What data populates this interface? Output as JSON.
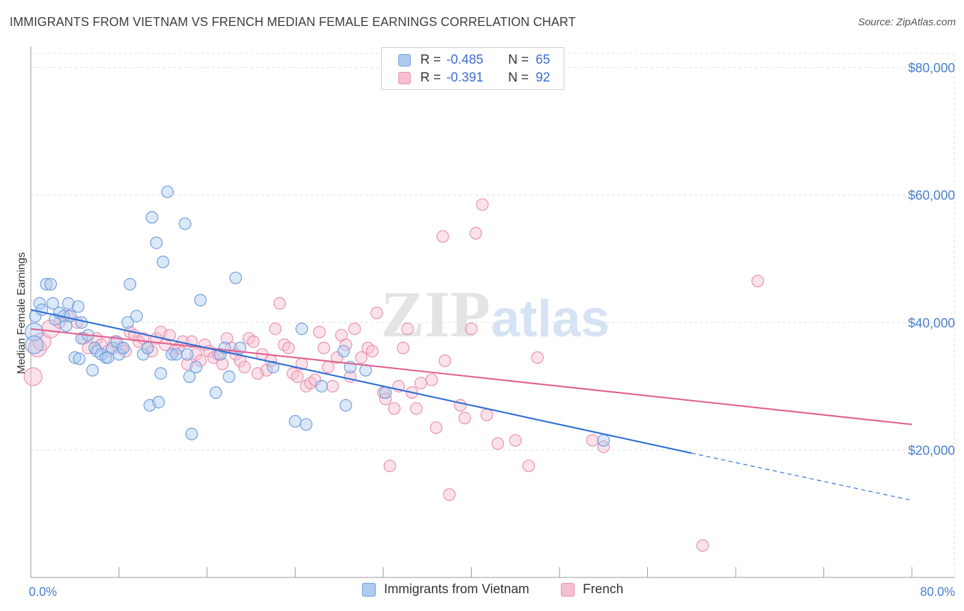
{
  "title": "IMMIGRANTS FROM VIETNAM VS FRENCH MEDIAN FEMALE EARNINGS CORRELATION CHART",
  "source": "Source: ZipAtlas.com",
  "watermark": {
    "zip": "ZIP",
    "atlas": "atlas"
  },
  "legend": {
    "rows": [
      {
        "r_label": "R =",
        "r_value": "-0.485",
        "n_label": "N =",
        "n_value": "65"
      },
      {
        "r_label": "R =",
        "r_value": "-0.391",
        "n_label": "N =",
        "n_value": "92"
      }
    ]
  },
  "colors": {
    "blue_fill": "#aecbf0",
    "blue_stroke": "#6f9de0",
    "blue_line": "#2e6fd3",
    "pink_fill": "#f7bfd0",
    "pink_stroke": "#ea8fae",
    "pink_line": "#e0628f",
    "tick_label": "#4a7fd0",
    "grid": "#dddddd"
  },
  "chart_data": {
    "type": "scatter",
    "title": "IMMIGRANTS FROM VIETNAM VS FRENCH MEDIAN FEMALE EARNINGS CORRELATION CHART",
    "xlabel": "",
    "ylabel": "Median Female Earnings",
    "xlim": [
      0,
      80
    ],
    "ylim": [
      0,
      82000
    ],
    "x_tick_labels": [
      "0.0%",
      "80.0%"
    ],
    "y_ticks": [
      20000,
      40000,
      60000,
      80000
    ],
    "y_tick_labels": [
      "$20,000",
      "$40,000",
      "$60,000",
      "$80,000"
    ],
    "grid": true,
    "legend_position": "top-center",
    "series": [
      {
        "name": "Immigrants from Vietnam",
        "r": -0.485,
        "n": 65,
        "trend": {
          "x0": 0,
          "y0": 42000,
          "x1": 60,
          "y1": 19500,
          "dash_to_x": 80,
          "dash_to_y": 12100
        },
        "points": [
          [
            0.3,
            38500,
            3
          ],
          [
            0.3,
            36500,
            3
          ],
          [
            0.4,
            41000,
            2
          ],
          [
            0.8,
            43000,
            2
          ],
          [
            1.0,
            42000,
            2
          ],
          [
            1.4,
            46000,
            2
          ],
          [
            1.8,
            46000,
            2
          ],
          [
            2.0,
            43000,
            2
          ],
          [
            2.2,
            40500,
            2
          ],
          [
            2.6,
            41500,
            2
          ],
          [
            3.0,
            41000,
            2
          ],
          [
            3.2,
            39500,
            2
          ],
          [
            3.6,
            41000,
            2
          ],
          [
            3.4,
            43000,
            2
          ],
          [
            4.3,
            42500,
            2
          ],
          [
            4.6,
            40000,
            2
          ],
          [
            4.0,
            34500,
            2
          ],
          [
            4.4,
            34300,
            2
          ],
          [
            4.6,
            37500,
            2
          ],
          [
            5.2,
            38000,
            2
          ],
          [
            5.6,
            32500,
            2
          ],
          [
            5.8,
            36000,
            2
          ],
          [
            6.0,
            35500,
            2
          ],
          [
            6.4,
            35000,
            2
          ],
          [
            6.8,
            34500,
            2
          ],
          [
            7.0,
            34500,
            2
          ],
          [
            7.4,
            36000,
            2
          ],
          [
            7.8,
            37000,
            2
          ],
          [
            8.0,
            35000,
            2
          ],
          [
            8.4,
            36000,
            2
          ],
          [
            8.8,
            40000,
            2
          ],
          [
            9.0,
            46000,
            2
          ],
          [
            9.6,
            41000,
            2
          ],
          [
            10.2,
            35000,
            2
          ],
          [
            10.6,
            36000,
            2
          ],
          [
            11.0,
            56500,
            2
          ],
          [
            11.4,
            52500,
            2
          ],
          [
            10.8,
            27000,
            2
          ],
          [
            11.6,
            27500,
            2
          ],
          [
            11.8,
            32000,
            2
          ],
          [
            12.0,
            49500,
            2
          ],
          [
            12.4,
            60500,
            2
          ],
          [
            12.8,
            35000,
            2
          ],
          [
            13.2,
            35000,
            2
          ],
          [
            14.0,
            55500,
            2
          ],
          [
            14.2,
            35000,
            2
          ],
          [
            14.4,
            31500,
            2
          ],
          [
            14.6,
            22500,
            2
          ],
          [
            15.4,
            43500,
            2
          ],
          [
            15.0,
            33000,
            2
          ],
          [
            16.8,
            29000,
            2
          ],
          [
            17.2,
            35000,
            2
          ],
          [
            17.6,
            36000,
            2
          ],
          [
            18.0,
            31500,
            2
          ],
          [
            18.6,
            47000,
            2
          ],
          [
            19.0,
            36000,
            2
          ],
          [
            22.0,
            33000,
            2
          ],
          [
            24.0,
            24500,
            2
          ],
          [
            24.6,
            39000,
            2
          ],
          [
            25.0,
            24000,
            2
          ],
          [
            26.4,
            30000,
            2
          ],
          [
            28.6,
            27000,
            2
          ],
          [
            28.4,
            35500,
            2
          ],
          [
            29.0,
            33000,
            2
          ],
          [
            30.4,
            32500,
            2
          ],
          [
            32.2,
            29000,
            2
          ],
          [
            52.0,
            21500,
            2
          ]
        ]
      },
      {
        "name": "French",
        "r": -0.391,
        "n": 92,
        "trend": {
          "x0": 0,
          "y0": 39000,
          "x1": 80,
          "y1": 24000
        },
        "points": [
          [
            0.2,
            31500,
            3
          ],
          [
            0.6,
            36000,
            3
          ],
          [
            1.0,
            37000,
            3
          ],
          [
            1.8,
            39000,
            3
          ],
          [
            2.6,
            40000,
            2
          ],
          [
            3.4,
            41000,
            2
          ],
          [
            4.2,
            40000,
            2
          ],
          [
            4.8,
            37500,
            2
          ],
          [
            5.2,
            36000,
            2
          ],
          [
            6.0,
            37500,
            2
          ],
          [
            6.4,
            36500,
            2
          ],
          [
            7.0,
            35500,
            2
          ],
          [
            7.6,
            37000,
            2
          ],
          [
            8.2,
            36000,
            2
          ],
          [
            8.6,
            35500,
            2
          ],
          [
            9.0,
            38500,
            2
          ],
          [
            9.4,
            38000,
            2
          ],
          [
            9.8,
            37000,
            2
          ],
          [
            10.2,
            37500,
            2
          ],
          [
            10.6,
            36000,
            2
          ],
          [
            11.0,
            35500,
            2
          ],
          [
            11.4,
            37500,
            2
          ],
          [
            11.8,
            38500,
            2
          ],
          [
            12.2,
            36500,
            2
          ],
          [
            12.6,
            38000,
            2
          ],
          [
            13.0,
            35500,
            2
          ],
          [
            13.4,
            36000,
            2
          ],
          [
            13.8,
            37000,
            2
          ],
          [
            14.2,
            33500,
            2
          ],
          [
            14.6,
            37000,
            2
          ],
          [
            15.0,
            35000,
            2
          ],
          [
            15.4,
            34000,
            2
          ],
          [
            15.8,
            36500,
            2
          ],
          [
            16.2,
            35500,
            2
          ],
          [
            16.6,
            34500,
            2
          ],
          [
            17.0,
            35000,
            2
          ],
          [
            17.4,
            33500,
            2
          ],
          [
            17.8,
            37500,
            2
          ],
          [
            18.2,
            36000,
            2
          ],
          [
            18.6,
            35000,
            2
          ],
          [
            19.0,
            34000,
            2
          ],
          [
            19.4,
            33000,
            2
          ],
          [
            19.8,
            37500,
            2
          ],
          [
            20.2,
            37000,
            2
          ],
          [
            20.6,
            32000,
            2
          ],
          [
            21.0,
            35000,
            2
          ],
          [
            21.4,
            32500,
            2
          ],
          [
            21.8,
            34000,
            2
          ],
          [
            22.2,
            39000,
            2
          ],
          [
            22.6,
            43000,
            2
          ],
          [
            23.0,
            36500,
            2
          ],
          [
            23.4,
            36000,
            2
          ],
          [
            23.8,
            32000,
            2
          ],
          [
            24.2,
            31500,
            2
          ],
          [
            24.6,
            33500,
            2
          ],
          [
            25.0,
            30000,
            2
          ],
          [
            25.4,
            30500,
            2
          ],
          [
            25.8,
            31000,
            2
          ],
          [
            26.2,
            38500,
            2
          ],
          [
            26.6,
            36000,
            2
          ],
          [
            27.0,
            33000,
            2
          ],
          [
            27.4,
            30000,
            2
          ],
          [
            27.8,
            34500,
            2
          ],
          [
            28.2,
            38000,
            2
          ],
          [
            28.6,
            36500,
            2
          ],
          [
            29.0,
            31500,
            2
          ],
          [
            29.4,
            39000,
            2
          ],
          [
            30.0,
            34500,
            2
          ],
          [
            30.6,
            36000,
            2
          ],
          [
            31.0,
            35500,
            2
          ],
          [
            31.4,
            41500,
            2
          ],
          [
            32.0,
            29000,
            2
          ],
          [
            32.2,
            28000,
            2
          ],
          [
            32.6,
            17500,
            2
          ],
          [
            33.0,
            26500,
            2
          ],
          [
            33.4,
            30000,
            2
          ],
          [
            33.8,
            36000,
            2
          ],
          [
            34.2,
            39000,
            2
          ],
          [
            34.6,
            29000,
            2
          ],
          [
            35.0,
            26500,
            2
          ],
          [
            35.4,
            30500,
            2
          ],
          [
            36.4,
            31000,
            2
          ],
          [
            36.8,
            23500,
            2
          ],
          [
            37.4,
            53500,
            2
          ],
          [
            37.6,
            34000,
            2
          ],
          [
            38.0,
            13000,
            2
          ],
          [
            39.0,
            27000,
            2
          ],
          [
            39.4,
            25000,
            2
          ],
          [
            40.0,
            39000,
            2
          ],
          [
            40.4,
            54000,
            2
          ],
          [
            41.0,
            58500,
            2
          ],
          [
            41.4,
            25500,
            2
          ],
          [
            42.4,
            21000,
            2
          ],
          [
            44.0,
            21500,
            2
          ],
          [
            45.2,
            17500,
            2
          ],
          [
            46.0,
            34500,
            2
          ],
          [
            51.0,
            21500,
            2
          ],
          [
            52.0,
            20500,
            2
          ],
          [
            61.0,
            5000,
            2
          ],
          [
            66.0,
            46500,
            2
          ]
        ]
      }
    ]
  },
  "bottom_legend": [
    "Immigrants from Vietnam",
    "French"
  ]
}
